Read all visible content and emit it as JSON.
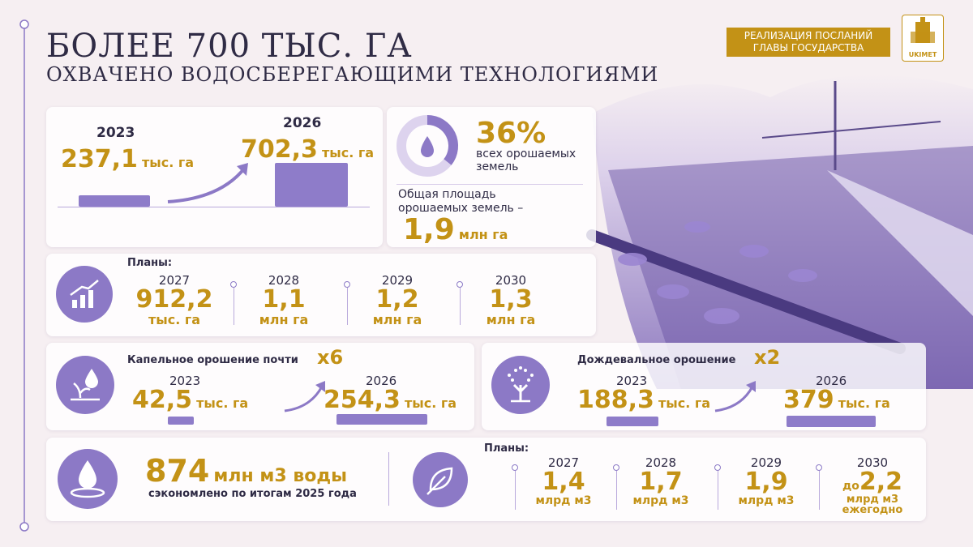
{
  "header": {
    "title": "БОЛЕЕ 700 ТЫС. ГА",
    "subtitle": "ОХВАЧЕНО ВОДОСБЕРЕГАЮЩИМИ ТЕХНОЛОГИЯМИ",
    "badge": [
      "РЕАЛИЗАЦИЯ ПОСЛАНИЙ",
      "ГЛАВЫ ГОСУДАРСТВА"
    ],
    "logo": "UKIMET"
  },
  "growth": {
    "start": {
      "year": "2023",
      "value": "237,1",
      "unit": "тыс. га"
    },
    "end": {
      "year": "2026",
      "value": "702,3",
      "unit": "тыс. га"
    }
  },
  "share": {
    "percent": "36%",
    "description": [
      "всех орошаемых",
      "земель"
    ],
    "total_label": [
      "Общая площадь",
      "орошаемых земель –"
    ],
    "total_value": "1,9",
    "total_unit": "млн га"
  },
  "plans": {
    "label": "Планы:",
    "items": [
      {
        "year": "2027",
        "value": "912,2",
        "unit": "тыс. га"
      },
      {
        "year": "2028",
        "value": "1,1",
        "unit": "млн га"
      },
      {
        "year": "2029",
        "value": "1,2",
        "unit": "млн га"
      },
      {
        "year": "2030",
        "value": "1,3",
        "unit": "млн га"
      }
    ]
  },
  "drip": {
    "title": "Капельное орошение почти",
    "multiplier": "x6",
    "start": {
      "year": "2023",
      "value": "42,5",
      "unit": "тыс. га"
    },
    "end": {
      "year": "2026",
      "value": "254,3",
      "unit": "тыс. га"
    }
  },
  "sprinkler": {
    "title": "Дождевальное орошение",
    "multiplier": "x2",
    "start": {
      "year": "2023",
      "value": "188,3",
      "unit": "тыс. га"
    },
    "end": {
      "year": "2026",
      "value": "379",
      "unit": "тыс. га"
    }
  },
  "water": {
    "value": "874",
    "unit": "млн м3 воды",
    "note": "сэкономлено по итогам 2025 года"
  },
  "water_plans": {
    "label": "Планы:",
    "items": [
      {
        "year": "2027",
        "value": "1,4",
        "unit": "млрд м3"
      },
      {
        "year": "2028",
        "value": "1,7",
        "unit": "млрд м3"
      },
      {
        "year": "2029",
        "value": "1,9",
        "unit": "млрд м3"
      },
      {
        "year": "2030",
        "prefix": "до",
        "value": "2,2",
        "unit": "млрд м3",
        "note": "ежегодно"
      }
    ]
  }
}
